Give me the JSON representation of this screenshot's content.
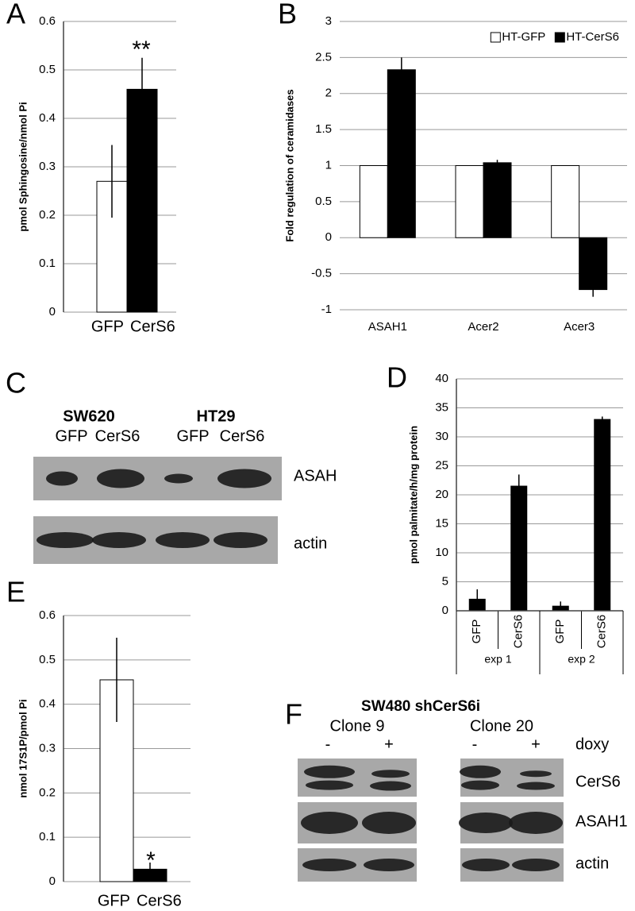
{
  "chart_data": [
    {
      "type": "bar",
      "panel_label": "A",
      "y_label": "pmol Sphingosine/nmol Pi",
      "categories": [
        "GFP",
        "CerS6"
      ],
      "values": [
        0.27,
        0.46
      ],
      "errors": [
        0.075,
        0.065
      ],
      "colors": [
        "#ffffff",
        "#000000"
      ],
      "annotation": "**",
      "ylim": [
        0,
        0.6
      ],
      "yticks": [
        0,
        0.1,
        0.2,
        0.3,
        0.4,
        0.5,
        0.6
      ],
      "grid": true
    },
    {
      "type": "bar",
      "panel_label": "B",
      "y_label": "Fold regulation of ceramidases",
      "categories": [
        "ASAH1",
        "Acer2",
        "Acer3"
      ],
      "series": [
        {
          "name": "HT-GFP",
          "color": "#ffffff",
          "values": [
            1,
            1,
            1
          ]
        },
        {
          "name": "HT-CerS6",
          "color": "#000000",
          "values": [
            2.33,
            1.04,
            -0.72
          ],
          "errors": [
            0.17,
            0.04,
            0.1
          ]
        }
      ],
      "legend": "upper right",
      "ylim": [
        -1,
        3
      ],
      "yticks": [
        -1,
        -0.5,
        0,
        0.5,
        1,
        1.5,
        2,
        2.5,
        3
      ],
      "grid": true
    },
    {
      "type": "bar",
      "panel_label": "D",
      "y_label": "pmol palmitate/h/mg protein",
      "categories": [
        "GFP",
        "CerS6",
        "GFP",
        "CerS6"
      ],
      "groups": [
        "exp 1",
        "exp 2"
      ],
      "values": [
        2,
        21.5,
        0.8,
        33
      ],
      "errors": [
        1.7,
        2,
        0.8,
        0.5
      ],
      "color": "#000000",
      "ylim": [
        0,
        40
      ],
      "yticks": [
        0,
        5,
        10,
        15,
        20,
        25,
        30,
        35,
        40
      ],
      "grid": true
    },
    {
      "type": "bar",
      "panel_label": "E",
      "y_label": "nmol 17S1P/pmol Pi",
      "categories": [
        "GFP",
        "CerS6"
      ],
      "values": [
        0.455,
        0.028
      ],
      "errors": [
        0.095,
        0.015
      ],
      "colors": [
        "#ffffff",
        "#000000"
      ],
      "annotation": "*",
      "ylim": [
        0,
        0.6
      ],
      "yticks": [
        0,
        0.1,
        0.2,
        0.3,
        0.4,
        0.5,
        0.6
      ],
      "grid": true
    }
  ],
  "blots": [
    {
      "panel_label": "C",
      "cell_lines": [
        "SW620",
        "HT29"
      ],
      "lanes": [
        [
          "GFP",
          "CerS6"
        ],
        [
          "GFP",
          "CerS6"
        ]
      ],
      "rows": [
        "ASAH",
        "actin"
      ]
    },
    {
      "panel_label": "F",
      "title": "SW480 shCerS6i",
      "clones": [
        "Clone 9",
        "Clone 20"
      ],
      "treatment": [
        "-",
        "+",
        "-",
        "+"
      ],
      "treatment_label": "doxy",
      "rows": [
        "CerS6",
        "ASAH1",
        "actin"
      ]
    }
  ]
}
